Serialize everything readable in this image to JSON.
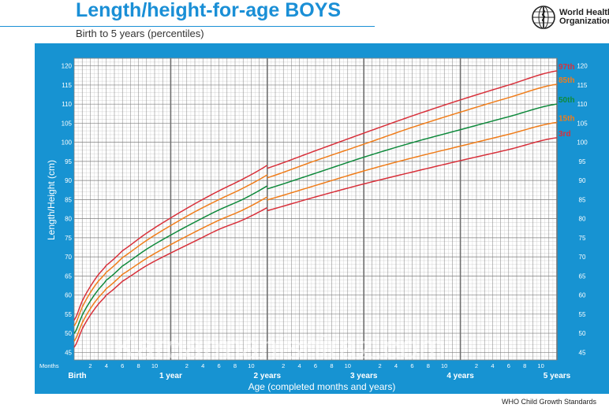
{
  "header": {
    "title": "Length/height-for-age BOYS",
    "subtitle": "Birth to 5 years (percentiles)",
    "logo_line1": "World Health",
    "logo_line2": "Organization"
  },
  "footer": {
    "source": "WHO Child Growth Standards"
  },
  "watermark": "Kardarmanishiraz.com",
  "colors": {
    "title": "#1a8fd6",
    "panel": "#1793d2",
    "plot_bg": "#ffffff",
    "grid_minor": "#c8c8c8",
    "grid_major": "#7f7f7f",
    "year_line": "#6f6f6f",
    "p97": "#d8303a",
    "p85": "#f07d1a",
    "p50": "#0f8a3c",
    "p15": "#f07d1a",
    "p3": "#d8303a"
  },
  "chart_data": {
    "type": "line",
    "ylabel": "Length/Height (cm)",
    "xlabel": "Age (completed months and years)",
    "x_row_label": "Months",
    "xlim": [
      0,
      60
    ],
    "ylim": [
      43,
      122
    ],
    "y_ticks": [
      45,
      50,
      55,
      60,
      65,
      70,
      75,
      80,
      85,
      90,
      95,
      100,
      105,
      110,
      115,
      120
    ],
    "month_ticks": [
      2,
      4,
      6,
      8,
      10
    ],
    "year_ticks": [
      {
        "month": 0,
        "label": "Birth"
      },
      {
        "month": 12,
        "label": "1 year"
      },
      {
        "month": 24,
        "label": "2 years"
      },
      {
        "month": 36,
        "label": "3 years"
      },
      {
        "month": 48,
        "label": "4 years"
      },
      {
        "month": 60,
        "label": "5 years"
      }
    ],
    "grid": true,
    "x": [
      0,
      1,
      2,
      3,
      4,
      6,
      9,
      12,
      15,
      18,
      21,
      24,
      30,
      36,
      42,
      48,
      54,
      60
    ],
    "series": [
      {
        "name": "97th",
        "color_key": "p97",
        "shift_at_24": -0.8,
        "values": [
          53.4,
          58.4,
          62.2,
          65.3,
          67.8,
          71.6,
          76.2,
          80.2,
          83.9,
          87.3,
          90.4,
          93.2,
          97.8,
          102.4,
          106.9,
          111.1,
          115.0,
          118.7
        ]
      },
      {
        "name": "85th",
        "color_key": "p85",
        "shift_at_24": -0.8,
        "values": [
          51.9,
          56.8,
          60.6,
          63.6,
          66.0,
          69.8,
          74.3,
          78.2,
          81.8,
          85.0,
          88.0,
          90.7,
          95.2,
          99.5,
          103.9,
          107.9,
          111.7,
          115.2
        ]
      },
      {
        "name": "50th",
        "color_key": "p50",
        "shift_at_24": -0.8,
        "values": [
          49.9,
          54.7,
          58.4,
          61.4,
          63.9,
          67.6,
          72.0,
          75.7,
          79.1,
          82.3,
          85.1,
          87.8,
          91.9,
          96.1,
          99.9,
          103.3,
          106.7,
          110.0
        ]
      },
      {
        "name": "15th",
        "color_key": "p15",
        "shift_at_24": -0.8,
        "values": [
          47.9,
          52.7,
          56.4,
          59.3,
          61.7,
          65.4,
          69.6,
          73.2,
          76.5,
          79.6,
          82.3,
          84.9,
          88.7,
          92.5,
          95.9,
          99.0,
          102.1,
          105.2
        ]
      },
      {
        "name": "3rd",
        "color_key": "p3",
        "shift_at_24": -0.8,
        "values": [
          46.3,
          51.1,
          54.7,
          57.6,
          60.0,
          63.6,
          67.7,
          71.0,
          74.1,
          77.2,
          79.7,
          82.1,
          85.7,
          89.1,
          92.2,
          95.2,
          98.1,
          101.2
        ]
      }
    ]
  }
}
